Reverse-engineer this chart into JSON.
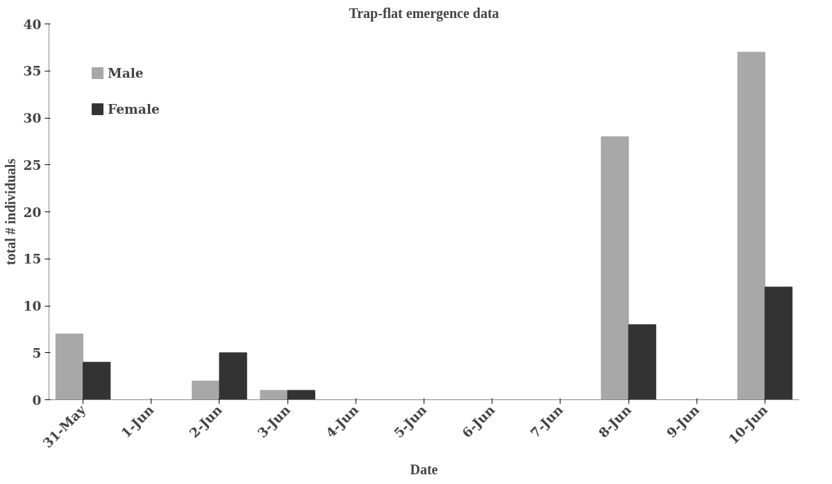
{
  "chart_data": {
    "type": "bar",
    "title": "Trap-flat emergence data",
    "xlabel": "Date",
    "ylabel": "total # individuals",
    "categories": [
      "31-May",
      "1-Jun",
      "2-Jun",
      "3-Jun",
      "4-Jun",
      "5-Jun",
      "6-Jun",
      "7-Jun",
      "8-Jun",
      "9-Jun",
      "10-Jun"
    ],
    "series": [
      {
        "name": "Male",
        "color": "#a8a8a8",
        "values": [
          7,
          0,
          2,
          1,
          0,
          0,
          0,
          0,
          28,
          0,
          37
        ]
      },
      {
        "name": "Female",
        "color": "#333333",
        "values": [
          4,
          0,
          5,
          1,
          0,
          0,
          0,
          0,
          8,
          0,
          12
        ]
      }
    ],
    "ylim": [
      0,
      40
    ],
    "yticks": [
      0,
      5,
      10,
      15,
      20,
      25,
      30,
      35,
      40
    ],
    "grid": false,
    "legend": "top left"
  }
}
